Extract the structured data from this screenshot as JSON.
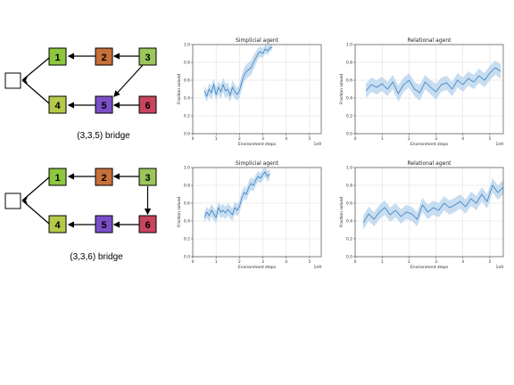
{
  "diagrams": [
    {
      "caption": "(3,3,5) bridge",
      "variant": "335",
      "nodes": [
        {
          "label": "1",
          "color": "#8dc63f"
        },
        {
          "label": "2",
          "color": "#c8703a"
        },
        {
          "label": "3",
          "color": "#9bc65a"
        },
        {
          "label": "4",
          "color": "#b5c94a"
        },
        {
          "label": "5",
          "color": "#7b4fc9"
        },
        {
          "label": "6",
          "color": "#c8455e"
        }
      ]
    },
    {
      "caption": "(3,3,6) bridge",
      "variant": "336",
      "nodes": [
        {
          "label": "1",
          "color": "#8dc63f"
        },
        {
          "label": "2",
          "color": "#c8703a"
        },
        {
          "label": "3",
          "color": "#9bc65a"
        },
        {
          "label": "4",
          "color": "#b5c94a"
        },
        {
          "label": "5",
          "color": "#7b4fc9"
        },
        {
          "label": "6",
          "color": "#c8455e"
        }
      ]
    }
  ],
  "style": {
    "line_color": "#3a7fc1",
    "band_color": "#b9d4ec",
    "grid_color": "#d9d9d9"
  },
  "chart_data": [
    {
      "type": "line",
      "title": "Simplicial agent",
      "xlabel": "Environment steps",
      "ylabel": "Fraction solved",
      "x_offset_label": "1e9",
      "xlim": [
        0,
        5.5
      ],
      "ylim": [
        0,
        1.0
      ],
      "xticks": [
        0,
        1,
        2,
        3,
        4,
        5
      ],
      "yticks": [
        0.0,
        0.2,
        0.4,
        0.6,
        0.8,
        1.0
      ],
      "grid": true,
      "x": [
        0.5,
        0.6,
        0.7,
        0.8,
        0.9,
        1.0,
        1.1,
        1.2,
        1.3,
        1.4,
        1.5,
        1.6,
        1.7,
        1.8,
        1.9,
        2.0,
        2.1,
        2.2,
        2.3,
        2.4,
        2.5,
        2.6,
        2.7,
        2.8,
        2.9,
        3.0,
        3.1,
        3.2,
        3.3,
        3.4
      ],
      "y": [
        0.48,
        0.42,
        0.5,
        0.46,
        0.55,
        0.44,
        0.52,
        0.47,
        0.55,
        0.48,
        0.5,
        0.43,
        0.52,
        0.47,
        0.44,
        0.48,
        0.58,
        0.66,
        0.7,
        0.72,
        0.74,
        0.8,
        0.85,
        0.9,
        0.92,
        0.9,
        0.95,
        0.93,
        0.96,
        0.97
      ],
      "lower": [
        0.42,
        0.36,
        0.43,
        0.38,
        0.47,
        0.37,
        0.44,
        0.39,
        0.47,
        0.4,
        0.42,
        0.36,
        0.44,
        0.39,
        0.37,
        0.4,
        0.5,
        0.58,
        0.62,
        0.64,
        0.66,
        0.72,
        0.78,
        0.84,
        0.86,
        0.85,
        0.9,
        0.88,
        0.92,
        0.94
      ],
      "upper": [
        0.54,
        0.48,
        0.57,
        0.54,
        0.62,
        0.51,
        0.59,
        0.55,
        0.63,
        0.56,
        0.58,
        0.5,
        0.6,
        0.55,
        0.51,
        0.56,
        0.66,
        0.74,
        0.78,
        0.8,
        0.82,
        0.88,
        0.92,
        0.96,
        0.98,
        0.95,
        1.0,
        0.98,
        1.0,
        1.0
      ]
    },
    {
      "type": "line",
      "title": "Relational agent",
      "xlabel": "Environment steps",
      "ylabel": "Fraction solved",
      "x_offset_label": "1e9",
      "xlim": [
        0,
        5.5
      ],
      "ylim": [
        0,
        1.0
      ],
      "xticks": [
        0,
        1,
        2,
        3,
        4,
        5
      ],
      "yticks": [
        0.0,
        0.2,
        0.4,
        0.6,
        0.8,
        1.0
      ],
      "grid": true,
      "x": [
        0.4,
        0.6,
        0.8,
        1.0,
        1.2,
        1.4,
        1.6,
        1.8,
        2.0,
        2.2,
        2.4,
        2.6,
        2.8,
        3.0,
        3.2,
        3.4,
        3.6,
        3.8,
        4.0,
        4.2,
        4.4,
        4.6,
        4.8,
        5.0,
        5.2,
        5.4
      ],
      "y": [
        0.48,
        0.55,
        0.52,
        0.56,
        0.5,
        0.58,
        0.45,
        0.55,
        0.6,
        0.5,
        0.46,
        0.58,
        0.52,
        0.47,
        0.55,
        0.57,
        0.5,
        0.6,
        0.55,
        0.62,
        0.58,
        0.65,
        0.6,
        0.68,
        0.74,
        0.7
      ],
      "lower": [
        0.4,
        0.47,
        0.44,
        0.48,
        0.42,
        0.5,
        0.36,
        0.47,
        0.52,
        0.42,
        0.37,
        0.5,
        0.44,
        0.38,
        0.47,
        0.49,
        0.42,
        0.52,
        0.47,
        0.54,
        0.5,
        0.57,
        0.52,
        0.6,
        0.66,
        0.62
      ],
      "upper": [
        0.56,
        0.63,
        0.6,
        0.64,
        0.58,
        0.66,
        0.54,
        0.63,
        0.68,
        0.58,
        0.55,
        0.66,
        0.6,
        0.56,
        0.63,
        0.65,
        0.58,
        0.68,
        0.63,
        0.7,
        0.66,
        0.73,
        0.68,
        0.76,
        0.82,
        0.78
      ]
    },
    {
      "type": "line",
      "title": "Simplicial agent",
      "xlabel": "Environment steps",
      "ylabel": "Fraction solved",
      "x_offset_label": "1e9",
      "xlim": [
        0,
        5.5
      ],
      "ylim": [
        0,
        1.0
      ],
      "xticks": [
        0,
        1,
        2,
        3,
        4,
        5
      ],
      "yticks": [
        0.0,
        0.2,
        0.4,
        0.6,
        0.8,
        1.0
      ],
      "grid": true,
      "x": [
        0.5,
        0.6,
        0.7,
        0.8,
        0.9,
        1.0,
        1.1,
        1.2,
        1.3,
        1.4,
        1.5,
        1.6,
        1.7,
        1.8,
        1.9,
        2.0,
        2.1,
        2.2,
        2.3,
        2.4,
        2.5,
        2.6,
        2.7,
        2.8,
        2.9,
        3.0,
        3.1,
        3.2,
        3.3
      ],
      "y": [
        0.44,
        0.5,
        0.46,
        0.52,
        0.48,
        0.44,
        0.55,
        0.5,
        0.52,
        0.49,
        0.53,
        0.5,
        0.47,
        0.55,
        0.52,
        0.56,
        0.66,
        0.72,
        0.7,
        0.78,
        0.82,
        0.8,
        0.86,
        0.9,
        0.88,
        0.92,
        0.95,
        0.9,
        0.93
      ],
      "lower": [
        0.38,
        0.44,
        0.39,
        0.45,
        0.41,
        0.37,
        0.48,
        0.43,
        0.45,
        0.42,
        0.46,
        0.43,
        0.4,
        0.48,
        0.45,
        0.49,
        0.59,
        0.65,
        0.63,
        0.71,
        0.75,
        0.73,
        0.8,
        0.84,
        0.82,
        0.86,
        0.9,
        0.84,
        0.88
      ],
      "upper": [
        0.5,
        0.56,
        0.53,
        0.59,
        0.55,
        0.51,
        0.62,
        0.57,
        0.59,
        0.56,
        0.6,
        0.57,
        0.54,
        0.62,
        0.59,
        0.63,
        0.73,
        0.79,
        0.77,
        0.85,
        0.89,
        0.87,
        0.92,
        0.96,
        0.94,
        0.98,
        1.0,
        0.96,
        0.98
      ]
    },
    {
      "type": "line",
      "title": "Relational agent",
      "xlabel": "Environment steps",
      "ylabel": "Fraction solved",
      "x_offset_label": "1e9",
      "xlim": [
        0,
        5.5
      ],
      "ylim": [
        0,
        1.0
      ],
      "xticks": [
        0,
        1,
        2,
        3,
        4,
        5
      ],
      "yticks": [
        0.0,
        0.2,
        0.4,
        0.6,
        0.8,
        1.0
      ],
      "grid": true,
      "x": [
        0.3,
        0.5,
        0.7,
        0.9,
        1.1,
        1.3,
        1.5,
        1.7,
        1.9,
        2.1,
        2.3,
        2.5,
        2.7,
        2.9,
        3.1,
        3.3,
        3.5,
        3.7,
        3.9,
        4.1,
        4.3,
        4.5,
        4.7,
        4.9,
        5.1,
        5.3,
        5.5
      ],
      "y": [
        0.38,
        0.48,
        0.42,
        0.5,
        0.55,
        0.47,
        0.52,
        0.45,
        0.5,
        0.48,
        0.42,
        0.58,
        0.5,
        0.55,
        0.52,
        0.6,
        0.55,
        0.58,
        0.62,
        0.56,
        0.65,
        0.6,
        0.7,
        0.62,
        0.8,
        0.72,
        0.78
      ],
      "lower": [
        0.3,
        0.4,
        0.34,
        0.42,
        0.47,
        0.39,
        0.44,
        0.37,
        0.42,
        0.4,
        0.34,
        0.5,
        0.42,
        0.47,
        0.44,
        0.52,
        0.47,
        0.5,
        0.54,
        0.48,
        0.57,
        0.52,
        0.62,
        0.54,
        0.72,
        0.64,
        0.7
      ],
      "upper": [
        0.46,
        0.56,
        0.5,
        0.58,
        0.63,
        0.55,
        0.6,
        0.53,
        0.58,
        0.56,
        0.5,
        0.66,
        0.58,
        0.63,
        0.6,
        0.68,
        0.63,
        0.66,
        0.7,
        0.64,
        0.73,
        0.68,
        0.78,
        0.7,
        0.88,
        0.8,
        0.86
      ]
    }
  ]
}
